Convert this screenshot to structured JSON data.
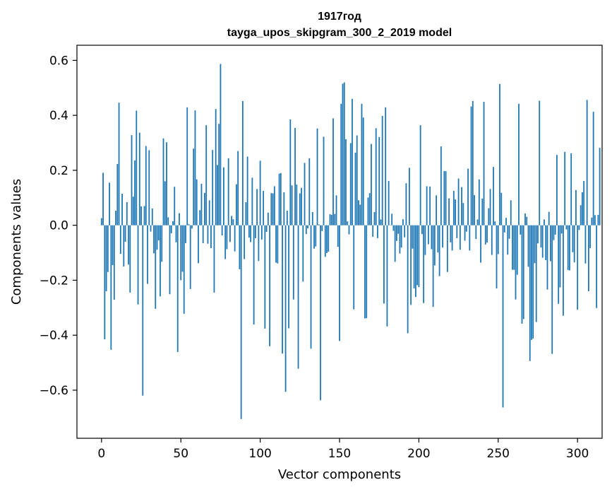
{
  "chart_data": {
    "type": "bar",
    "title": "1917год",
    "subtitle": "tayga_upos_skipgram_300_2_2019 model",
    "xlabel": "Vector components",
    "ylabel": "Components values",
    "xlim": [
      -15.5,
      315.5
    ],
    "ylim": [
      -0.775,
      0.655
    ],
    "xticks": [
      0,
      50,
      100,
      150,
      200,
      250,
      300
    ],
    "yticks": [
      -0.6,
      -0.4,
      -0.2,
      0.0,
      0.2,
      0.4,
      0.6
    ],
    "xtick_labels": [
      "0",
      "50",
      "100",
      "150",
      "200",
      "250",
      "300"
    ],
    "ytick_labels": [
      "−0.6",
      "−0.4",
      "−0.2",
      "0.0",
      "0.2",
      "0.4",
      "0.6"
    ],
    "grid": false,
    "bar_color": "#1f77b4",
    "values": [
      0.026,
      0.191,
      -0.415,
      -0.24,
      -0.17,
      0.155,
      -0.453,
      -0.145,
      -0.271,
      0.053,
      0.223,
      0.446,
      -0.104,
      0.115,
      -0.15,
      -0.06,
      0.084,
      -0.143,
      -0.245,
      0.328,
      0.104,
      0.236,
      0.417,
      -0.288,
      0.337,
      0.069,
      -0.62,
      0.07,
      0.288,
      -0.213,
      0.273,
      -0.023,
      0.061,
      -0.102,
      -0.304,
      -0.089,
      -0.055,
      -0.259,
      -0.133,
      0.316,
      0.16,
      0.302,
      0.029,
      -0.251,
      -0.029,
      0.015,
      0.14,
      -0.062,
      -0.461,
      0.044,
      -0.2,
      -0.169,
      -0.322,
      -0.065,
      0.429,
      0.004,
      -0.232,
      -0.012,
      0.279,
      0.418,
      0.167,
      -0.138,
      0.055,
      0.151,
      -0.065,
      0.118,
      0.364,
      -0.067,
      0.091,
      -0.083,
      0.274,
      -0.245,
      0.423,
      0.219,
      0.369,
      0.587,
      -0.037,
      0.211,
      -0.123,
      -0.087,
      0.244,
      -0.061,
      0.034,
      0.022,
      -0.095,
      0.149,
      0.27,
      -0.16,
      -0.705,
      0.452,
      -0.123,
      0.084,
      0.25,
      -0.045,
      -0.061,
      0.173,
      -0.361,
      -0.047,
      0.132,
      -0.13,
      0.235,
      -0.052,
      0.125,
      -0.376,
      -0.024,
      0.046,
      -0.44,
      0.117,
      0.116,
      0.142,
      -0.136,
      -0.139,
      0.188,
      0.19,
      -0.467,
      0.12,
      -0.606,
      0.053,
      -0.375,
      0.385,
      0.145,
      -0.27,
      0.354,
      0.148,
      -0.522,
      0.116,
      0.136,
      -0.205,
      0.227,
      -0.032,
      -0.011,
      0.244,
      -0.449,
      0.048,
      -0.085,
      -0.077,
      0.352,
      0.003,
      -0.637,
      -0.021,
      0.322,
      -0.115,
      -0.101,
      -0.096,
      0.04,
      0.038,
      0.389,
      0.041,
      0.109,
      -0.078,
      -0.421,
      0.442,
      0.515,
      0.52,
      0.313,
      0.014,
      -0.033,
      0.299,
      0.46,
      -0.306,
      0.264,
      0.327,
      0.091,
      0.075,
      0.442,
      0.392,
      -0.339,
      -0.338,
      0.101,
      0.117,
      0.296,
      -0.042,
      0.048,
      0.353,
      -0.047,
      0.321,
      0.021,
      0.398,
      -0.285,
      0.429,
      -0.368,
      0.161,
      0.001,
      0.042,
      -0.02,
      -0.133,
      -0.057,
      -0.031,
      -0.103,
      -0.081,
      0.022,
      -0.044,
      0.153,
      -0.393,
      0.209,
      -0.29,
      -0.085,
      -0.23,
      -0.261,
      -0.218,
      -0.225,
      0.364,
      -0.032,
      -0.283,
      -0.108,
      0.142,
      -0.069,
      0.141,
      -0.087,
      -0.297,
      -0.146,
      0.109,
      -0.099,
      -0.185,
      0.287,
      -0.081,
      0.197,
      0.197,
      -0.17,
      0.098,
      -0.062,
      -0.092,
      0.125,
      0.094,
      -0.047,
      0.17,
      -0.089,
      0.139,
      0.081,
      -0.056,
      -0.023,
      0.206,
      -0.092,
      0.432,
      0.452,
      0.11,
      -0.05,
      0.021,
      0.167,
      -0.136,
      0.097,
      0.449,
      -0.07,
      -0.063,
      0.062,
      0.132,
      -0.108,
      0.212,
      0.014,
      -0.23,
      -0.105,
      0.514,
      0.118,
      -0.663,
      -0.026,
      0.027,
      -0.107,
      -0.049,
      0.091,
      -0.162,
      -0.162,
      -0.27,
      -0.18,
      0.442,
      -0.034,
      -0.358,
      -0.341,
      0.043,
      0.031,
      -0.151,
      -0.494,
      -0.417,
      -0.412,
      -0.138,
      -0.352,
      -0.066,
      0.453,
      -0.081,
      -0.118,
      0.021,
      -0.127,
      -0.234,
      0.049,
      -0.131,
      -0.468,
      -0.054,
      -0.034,
      0.256,
      -0.286,
      -0.226,
      -0.03,
      -0.329,
      0.267,
      -0.015,
      -0.163,
      -0.164,
      0.262,
      -0.098,
      -0.135,
      0.128,
      -0.307,
      -0.017,
      0.073,
      0.12,
      0.161,
      -0.139,
      0.456,
      -0.24,
      -0.083,
      0.028,
      0.413,
      0.037,
      -0.301,
      0.038,
      0.282
    ]
  }
}
